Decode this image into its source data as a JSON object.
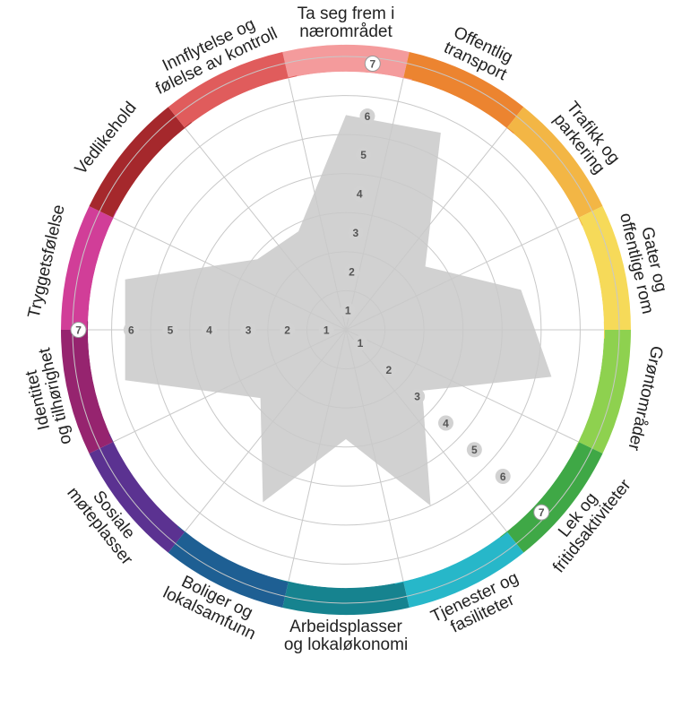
{
  "chart_data": {
    "type": "radar",
    "title": "",
    "scale": {
      "min": 0,
      "max": 7,
      "ticks": [
        1,
        2,
        3,
        4,
        5,
        6,
        7
      ]
    },
    "categories": [
      {
        "label": [
          "Ta seg frem i",
          "nærområdet"
        ],
        "color": "#f49b9c",
        "value": 5.5
      },
      {
        "label": [
          "Offentlig",
          "transport"
        ],
        "color": "#ec8430",
        "value": 5.6
      },
      {
        "label": [
          "Trafikk og",
          "parkering"
        ],
        "color": "#f3b645",
        "value": 2.6
      },
      {
        "label": [
          "Gater og",
          "offentlige rom"
        ],
        "color": "#f6da59",
        "value": 4.6
      },
      {
        "label": [
          "Grøntområder"
        ],
        "color": "#8ed14f",
        "value": 5.4
      },
      {
        "label": [
          "Lek og",
          "fritidsaktiviteter"
        ],
        "color": "#3fa846",
        "value": 2.5
      },
      {
        "label": [
          "Tjenester og",
          "fasiliteter"
        ],
        "color": "#27b7c9",
        "value": 5.0
      },
      {
        "label": [
          "Arbeidsplasser",
          "og lokaløkonomi"
        ],
        "color": "#16838f",
        "value": 2.8
      },
      {
        "label": [
          "Boliger og",
          "lokalsamfunn"
        ],
        "color": "#1e5f93",
        "value": 4.9
      },
      {
        "label": [
          "Sosiale",
          "møteplasser"
        ],
        "color": "#5b3291",
        "value": 2.8
      },
      {
        "label": [
          "Identitet",
          "og tilhørighet"
        ],
        "color": "#96246f",
        "value": 5.8
      },
      {
        "label": [
          "Tryggetsfølelse"
        ],
        "color": "#d13e98",
        "value": 5.8
      },
      {
        "label": [
          "Vedlikehold"
        ],
        "color": "#a5282c",
        "value": 2.9
      },
      {
        "label": [
          "Innflytelse og",
          "følelse av kontroll"
        ],
        "color": "#e05c5c",
        "value": 2.8
      }
    ]
  }
}
